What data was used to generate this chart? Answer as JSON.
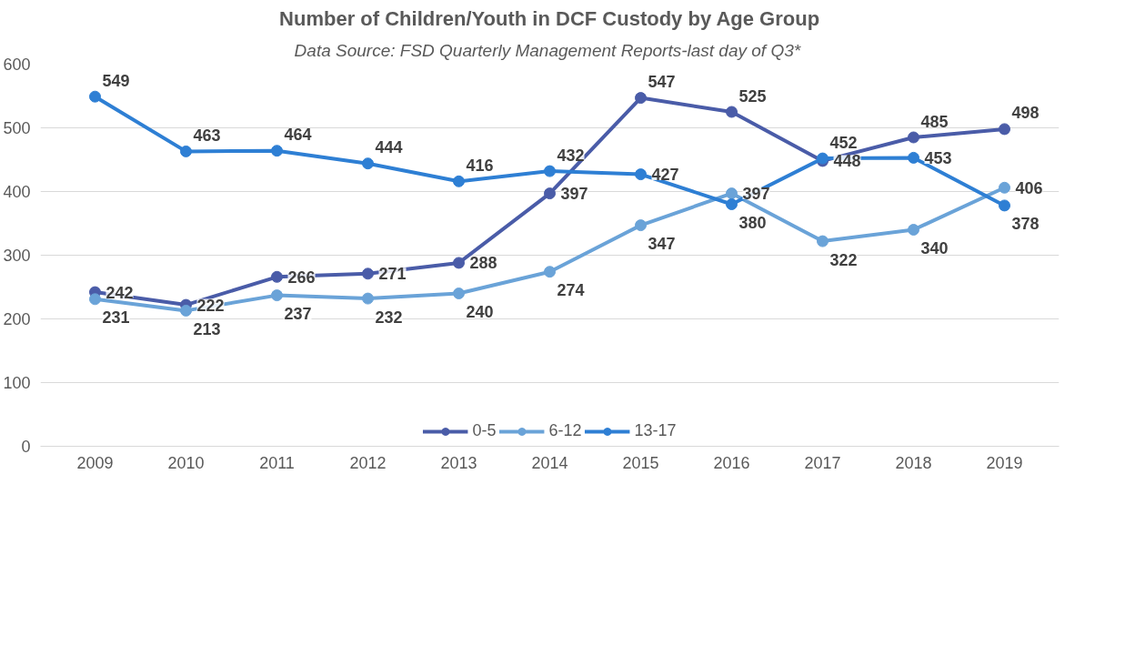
{
  "chart_data": {
    "type": "line",
    "title": "Number of Children/Youth in DCF Custody by Age Group",
    "subtitle": "Data Source:  FSD Quarterly Management Reports-last day of Q3*",
    "categories": [
      "2009",
      "2010",
      "2011",
      "2012",
      "2013",
      "2014",
      "2015",
      "2016",
      "2017",
      "2018",
      "2019"
    ],
    "series": [
      {
        "name": "0-5",
        "color": "#4a5ca8",
        "values": [
          242,
          222,
          266,
          271,
          288,
          397,
          547,
          525,
          448,
          485,
          498
        ]
      },
      {
        "name": "6-12",
        "color": "#6aa3d8",
        "values": [
          231,
          213,
          237,
          232,
          240,
          274,
          347,
          397,
          322,
          340,
          406
        ]
      },
      {
        "name": "13-17",
        "color": "#2e7fd4",
        "values": [
          549,
          463,
          464,
          444,
          416,
          432,
          427,
          380,
          452,
          453,
          378
        ]
      }
    ],
    "ylim": [
      0,
      600
    ],
    "yticks": [
      0,
      100,
      200,
      300,
      400,
      500,
      600
    ],
    "grid": "y",
    "legend": "bottom",
    "marker": "circle",
    "data_labels": true
  }
}
